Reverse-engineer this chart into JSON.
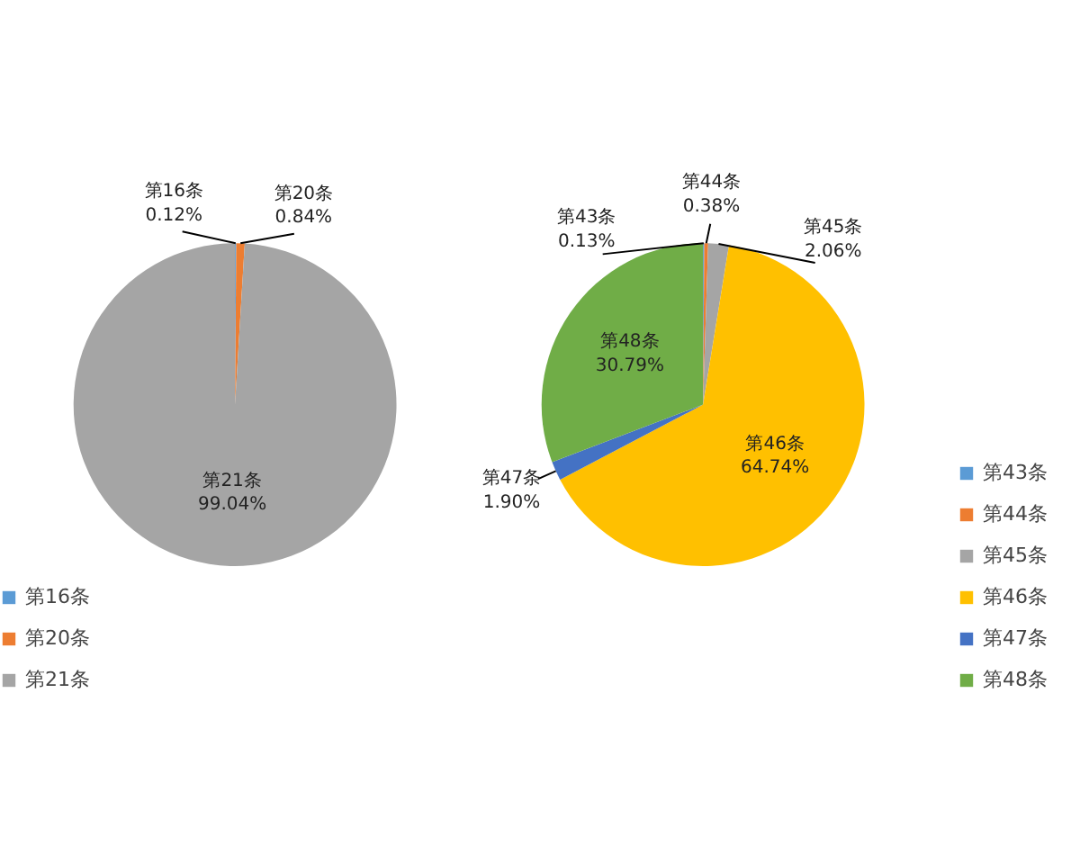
{
  "chart_data": [
    {
      "type": "pie",
      "categories": [
        "第16条",
        "第20条",
        "第21条"
      ],
      "values": [
        0.12,
        0.84,
        99.04
      ],
      "colors": [
        "#5b9bd5",
        "#ed7d31",
        "#a5a5a5"
      ],
      "value_labels": [
        "0.12%",
        "0.84%",
        "99.04%"
      ],
      "legend": "bottom"
    },
    {
      "type": "pie",
      "categories": [
        "第43条",
        "第44条",
        "第45条",
        "第46条",
        "第47条",
        "第48条"
      ],
      "values": [
        0.13,
        0.38,
        2.06,
        64.74,
        1.9,
        30.79
      ],
      "colors": [
        "#5b9bd5",
        "#ed7d31",
        "#a5a5a5",
        "#ffc000",
        "#4472c4",
        "#70ad47"
      ],
      "value_labels": [
        "0.13%",
        "0.38%",
        "2.06%",
        "64.74%",
        "1.90%",
        "30.79%"
      ],
      "legend": "right"
    }
  ]
}
